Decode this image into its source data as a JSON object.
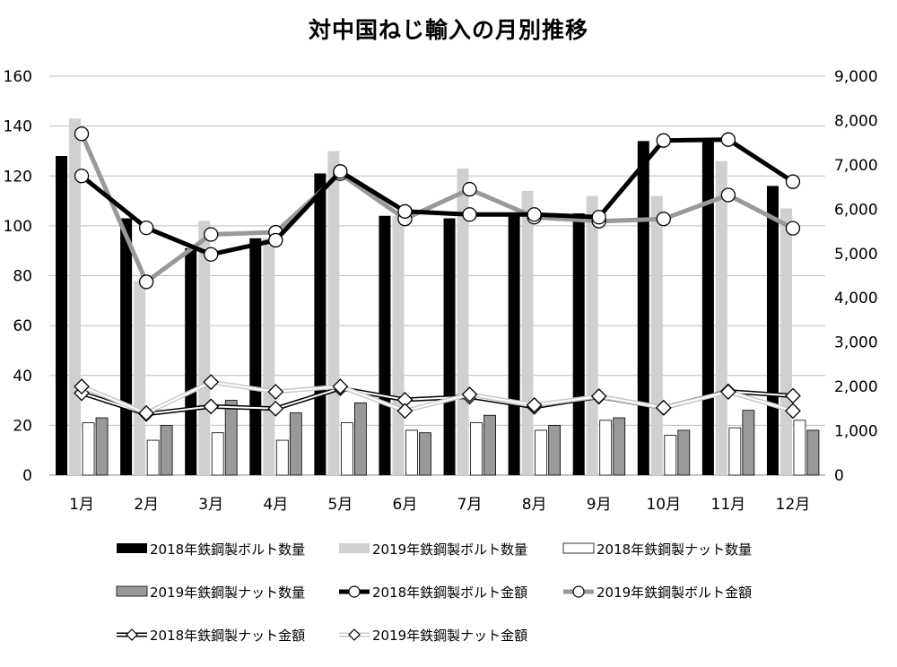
{
  "chart_data": {
    "type": "bar",
    "title": "対中国ねじ輸入の月別推移",
    "categories": [
      "1月",
      "2月",
      "3月",
      "4月",
      "5月",
      "6月",
      "7月",
      "8月",
      "9月",
      "10月",
      "11月",
      "12月"
    ],
    "y_left": {
      "min": 0,
      "max": 160,
      "step": 20,
      "ticks": [
        "0",
        "20",
        "40",
        "60",
        "80",
        "100",
        "120",
        "140",
        "160"
      ]
    },
    "y_right": {
      "min": 0,
      "max": 9000,
      "step": 1000,
      "ticks": [
        "0",
        "1,000",
        "2,000",
        "3,000",
        "4,000",
        "5,000",
        "6,000",
        "7,000",
        "8,000",
        "9,000"
      ]
    },
    "grid": true,
    "legend_position": "bottom",
    "series": [
      {
        "name": "2018年鉄鋼製ボルト数量",
        "kind": "bar",
        "axis": "left",
        "color": "#000000",
        "values": [
          128,
          103,
          91,
          95,
          121,
          104,
          103,
          104,
          105,
          134,
          135,
          116
        ]
      },
      {
        "name": "2019年鉄鋼製ボルト数量",
        "kind": "bar",
        "axis": "left",
        "color": "#d0d0d0",
        "values": [
          143,
          78,
          102,
          95,
          130,
          104,
          123,
          114,
          112,
          112,
          126,
          107
        ]
      },
      {
        "name": "2018年鉄鋼製ナット数量",
        "kind": "bar",
        "axis": "left",
        "color": "#ffffff",
        "values": [
          21,
          14,
          17,
          14,
          21,
          18,
          21,
          18,
          22,
          16,
          19,
          22
        ]
      },
      {
        "name": "2019年鉄鋼製ナット数量",
        "kind": "bar",
        "axis": "left",
        "color": "#999999",
        "values": [
          23,
          20,
          30,
          25,
          29,
          17,
          24,
          20,
          23,
          18,
          26,
          18
        ]
      },
      {
        "name": "2018年鉄鋼製ボルト金額",
        "kind": "line",
        "marker": "circle",
        "axis": "right",
        "color": "#000000",
        "values": [
          6750,
          5580,
          4980,
          5300,
          6850,
          5950,
          5880,
          5880,
          5820,
          7550,
          7570,
          6620
        ]
      },
      {
        "name": "2019年鉄鋼製ボルト金額",
        "kind": "line",
        "marker": "circle",
        "axis": "right",
        "color": "#999999",
        "values": [
          7700,
          4360,
          5430,
          5480,
          6800,
          5780,
          6450,
          5820,
          5730,
          5780,
          6320,
          5570
        ]
      },
      {
        "name": "2018年鉄鋼製ナット金額",
        "kind": "line",
        "marker": "diamond",
        "axis": "right",
        "color": "#000000",
        "values": [
          1850,
          1380,
          1550,
          1500,
          1960,
          1700,
          1770,
          1540,
          1770,
          1520,
          1890,
          1790
        ]
      },
      {
        "name": "2019年鉄鋼製ナット金額",
        "kind": "line",
        "marker": "diamond",
        "axis": "right",
        "color": "#c8c8c8",
        "values": [
          2000,
          1400,
          2100,
          1880,
          2000,
          1450,
          1820,
          1580,
          1780,
          1520,
          1880,
          1450
        ]
      }
    ]
  }
}
